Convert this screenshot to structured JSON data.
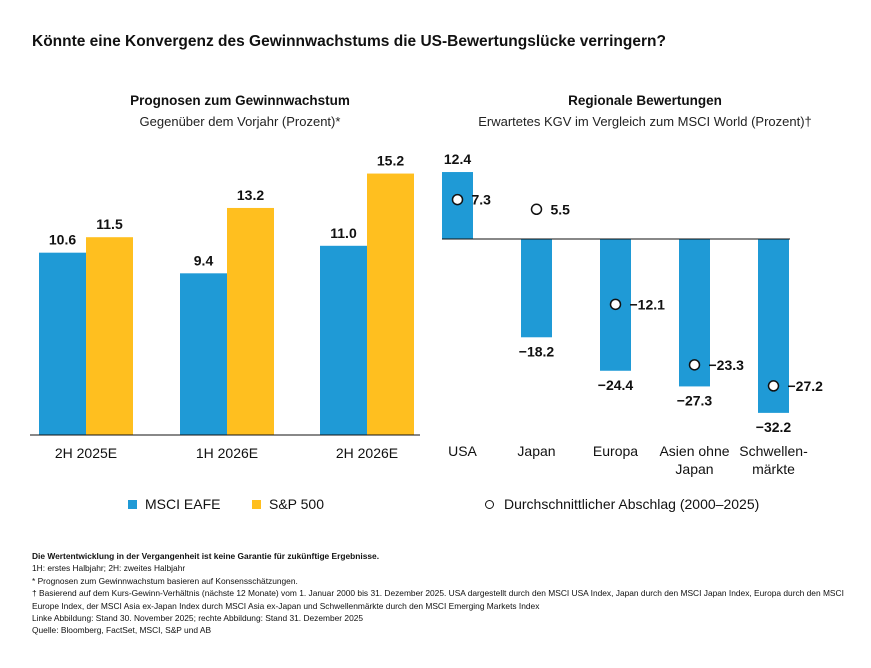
{
  "title": "Könnte eine Konvergenz des Gewinnwachstums die US-Bewertungslücke verringern?",
  "colors": {
    "blue": "#1f9ad6",
    "yellow": "#ffbf1f"
  },
  "chart_data": [
    {
      "type": "bar",
      "title": "Prognosen zum Gewinnwachstum",
      "subtitle": "Gegenüber dem Vorjahr (Prozent)*",
      "categories": [
        "2H 2025E",
        "1H 2026E",
        "2H 2026E"
      ],
      "series": [
        {
          "name": "MSCI EAFE",
          "values": [
            10.6,
            9.4,
            11.0
          ],
          "labels": [
            "10.6",
            "9.4",
            "11.0"
          ]
        },
        {
          "name": "S&P 500",
          "values": [
            11.5,
            13.2,
            15.2
          ],
          "labels": [
            "11.5",
            "13.2",
            "15.2"
          ]
        }
      ],
      "ylim": [
        0,
        16
      ]
    },
    {
      "type": "bar",
      "title": "Regionale Bewertungen",
      "subtitle": "Erwartetes KGV im Vergleich zum MSCI World (Prozent)†",
      "categories": [
        "USA",
        "Japan",
        "Europa",
        "Asien ohne Japan",
        "Schwellen-märkte"
      ],
      "category_lines": [
        [
          "USA"
        ],
        [
          "Japan"
        ],
        [
          "Europa"
        ],
        [
          "Asien ohne",
          "Japan"
        ],
        [
          "Schwellen-",
          "märkte"
        ]
      ],
      "series": [
        {
          "name": "Erwartetes KGV",
          "values": [
            12.4,
            -18.2,
            -24.4,
            -27.3,
            -32.2
          ],
          "labels": [
            "12.4",
            "−18.2",
            "−24.4",
            "−27.3",
            "−32.2"
          ]
        },
        {
          "name": "Durchschnittlicher Abschlag (2000–2025)",
          "values": [
            7.3,
            5.5,
            -12.1,
            -23.3,
            -27.2
          ],
          "labels": [
            "7.3",
            "5.5",
            "−12.1",
            "−23.3",
            "−27.2"
          ]
        }
      ],
      "ylim": [
        -35,
        15
      ]
    }
  ],
  "legend": {
    "eafe": "MSCI EAFE",
    "sp500": "S&P 500",
    "avg": "Durchschnittlicher Abschlag (2000–2025)"
  },
  "footer": {
    "disclaimer": "Die Wertentwicklung in der Vergangenheit ist keine Garantie für zukünftige Ergebnisse.",
    "line1": "1H: erstes Halbjahr; 2H: zweites Halbjahr",
    "line2": "* Prognosen zum Gewinnwachstum basieren auf Konsensschätzungen.",
    "line3": "† Basierend auf dem Kurs-Gewinn-Verhältnis (nächste 12 Monate) vom 1. Januar 2000 bis 31. Dezember 2025. USA dargestellt durch den MSCI USA Index, Japan durch den MSCI Japan Index, Europa durch den MSCI Europe Index, der MSCI Asia ex-Japan Index durch MSCI Asia ex-Japan und Schwellenmärkte durch den MSCI Emerging Markets Index",
    "line4": "Linke Abbildung: Stand 30. November 2025; rechte Abbildung: Stand 31. Dezember 2025",
    "line5": "Quelle: Bloomberg, FactSet, MSCI, S&P und AB"
  }
}
